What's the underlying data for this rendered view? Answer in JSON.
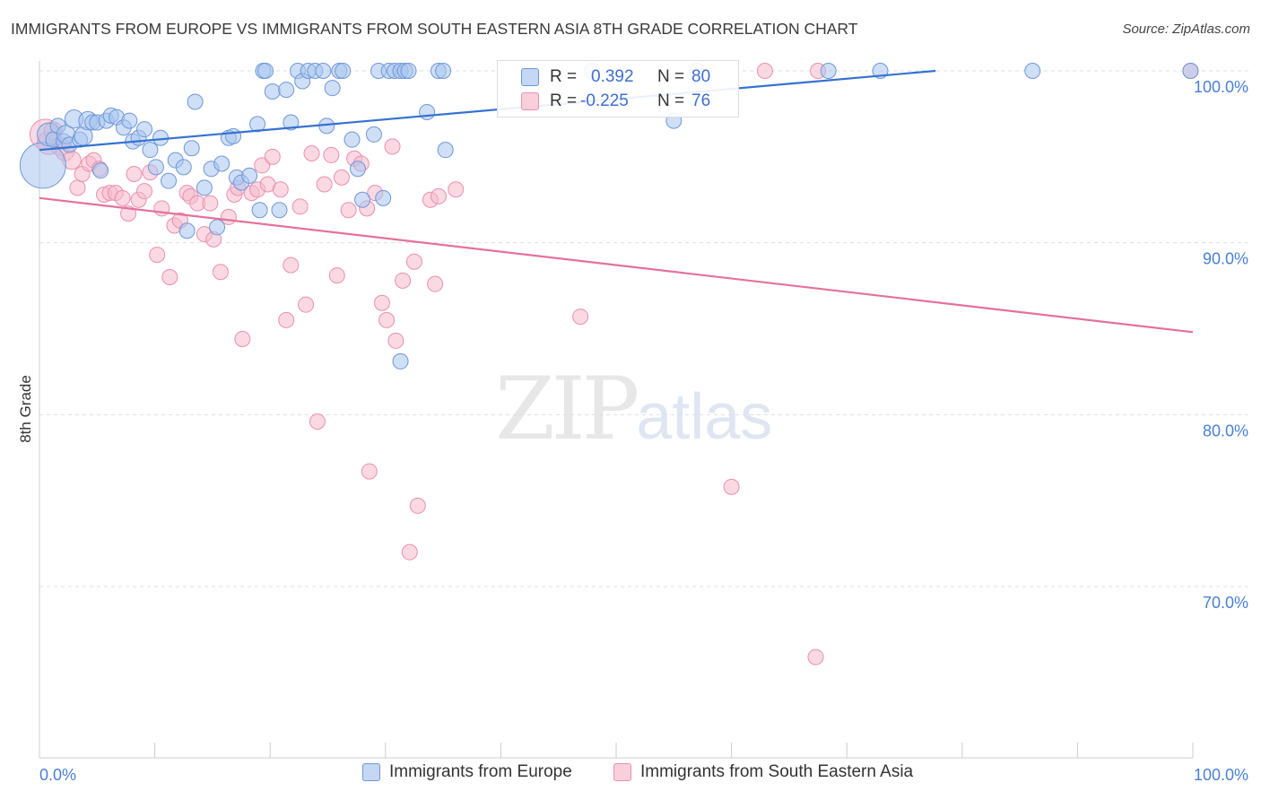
{
  "title": "IMMIGRANTS FROM EUROPE VS IMMIGRANTS FROM SOUTH EASTERN ASIA 8TH GRADE CORRELATION CHART",
  "source": "Source: ZipAtlas.com",
  "watermark": {
    "zip": "ZIP",
    "atlas": "atlas"
  },
  "stats": {
    "r_label": "R =",
    "n_label": "N =",
    "europe": {
      "r": "0.392",
      "n": "80"
    },
    "seasia": {
      "r": "-0.225",
      "n": "76"
    }
  },
  "legend": {
    "europe": "Immigrants from Europe",
    "seasia": "Immigrants from South Eastern Asia"
  },
  "colors": {
    "europe_fill": "#a8c4ee",
    "europe_stroke": "#6f97d8",
    "europe_line": "#3572d0",
    "seasia_fill": "#f6b9cc",
    "seasia_stroke": "#ec8fae",
    "seasia_line": "#e4719c",
    "tick_label": "#4a7fd4",
    "grid": "#dddddd"
  },
  "chart_data": {
    "type": "scatter",
    "title": "IMMIGRANTS FROM EUROPE VS IMMIGRANTS FROM SOUTH EASTERN ASIA 8TH GRADE CORRELATION CHART",
    "xlabel": "",
    "ylabel": "8th Grade",
    "xlim": [
      0,
      100
    ],
    "ylim": [
      60,
      103
    ],
    "x_tick_labels": [
      "0.0%",
      "100.0%"
    ],
    "y_ticks": [
      70,
      80,
      90,
      100
    ],
    "y_tick_labels": [
      "70.0%",
      "80.0%",
      "90.0%",
      "100.0%"
    ],
    "grid": true,
    "legend_position": "bottom",
    "series": [
      {
        "name": "Immigrants from Europe",
        "trend": {
          "x": [
            0,
            77.7
          ],
          "y": [
            95.4,
            100.0
          ]
        },
        "points": [
          [
            0.3,
            94.5,
            3
          ],
          [
            0.8,
            96.3,
            1.5
          ],
          [
            1.2,
            96.0,
            1
          ],
          [
            1.6,
            96.8,
            1
          ],
          [
            2.1,
            95.9,
            1
          ],
          [
            2.3,
            96.3,
            1.2
          ],
          [
            2.6,
            95.7,
            1
          ],
          [
            3.0,
            97.2,
            1.2
          ],
          [
            3.5,
            96.0,
            1
          ],
          [
            3.8,
            96.2,
            1.2
          ],
          [
            4.2,
            97.1,
            1.2
          ],
          [
            4.6,
            97.0,
            1
          ],
          [
            5.0,
            97.0,
            1
          ],
          [
            5.3,
            94.2,
            1
          ],
          [
            5.8,
            97.1,
            1
          ],
          [
            6.2,
            97.4,
            1
          ],
          [
            6.7,
            97.3,
            1
          ],
          [
            7.3,
            96.7,
            1
          ],
          [
            7.8,
            97.1,
            1
          ],
          [
            8.1,
            95.9,
            1
          ],
          [
            8.6,
            96.1,
            1
          ],
          [
            9.1,
            96.6,
            1
          ],
          [
            9.6,
            95.4,
            1
          ],
          [
            10.1,
            94.4,
            1
          ],
          [
            10.5,
            96.1,
            1
          ],
          [
            11.2,
            93.6,
            1
          ],
          [
            11.8,
            94.8,
            1
          ],
          [
            12.5,
            94.4,
            1
          ],
          [
            12.8,
            90.7,
            1
          ],
          [
            13.2,
            95.5,
            1
          ],
          [
            13.5,
            98.2,
            1
          ],
          [
            14.3,
            93.2,
            1
          ],
          [
            14.9,
            94.3,
            1
          ],
          [
            15.4,
            90.9,
            1
          ],
          [
            15.8,
            94.6,
            1
          ],
          [
            16.4,
            96.1,
            1
          ],
          [
            16.8,
            96.2,
            1
          ],
          [
            17.1,
            93.8,
            1
          ],
          [
            17.5,
            93.5,
            1
          ],
          [
            18.2,
            93.9,
            1
          ],
          [
            18.9,
            96.9,
            1
          ],
          [
            19.1,
            91.9,
            1
          ],
          [
            19.4,
            100.0,
            1
          ],
          [
            19.6,
            100.0,
            1
          ],
          [
            20.2,
            98.8,
            1
          ],
          [
            20.8,
            91.9,
            1
          ],
          [
            21.4,
            98.9,
            1
          ],
          [
            21.8,
            97.0,
            1
          ],
          [
            22.4,
            100.0,
            1
          ],
          [
            22.8,
            99.4,
            1
          ],
          [
            23.3,
            100.0,
            1
          ],
          [
            23.9,
            100.0,
            1
          ],
          [
            24.6,
            100.0,
            1
          ],
          [
            24.9,
            96.8,
            1
          ],
          [
            25.4,
            99.0,
            1
          ],
          [
            26.0,
            100.0,
            1
          ],
          [
            26.3,
            100.0,
            1
          ],
          [
            27.1,
            96.0,
            1
          ],
          [
            27.6,
            94.3,
            1
          ],
          [
            28.0,
            92.5,
            1
          ],
          [
            29.0,
            96.3,
            1
          ],
          [
            29.4,
            100.0,
            1
          ],
          [
            29.8,
            92.6,
            1
          ],
          [
            30.3,
            100.0,
            1
          ],
          [
            30.8,
            100.0,
            1
          ],
          [
            31.3,
            100.0,
            1
          ],
          [
            31.7,
            100.0,
            1
          ],
          [
            32.0,
            100.0,
            1
          ],
          [
            31.3,
            83.1,
            1
          ],
          [
            33.6,
            97.6,
            1
          ],
          [
            34.6,
            100.0,
            1
          ],
          [
            35.0,
            100.0,
            1
          ],
          [
            35.2,
            95.4,
            1
          ],
          [
            47.9,
            100.0,
            1
          ],
          [
            55.0,
            97.1,
            1
          ],
          [
            57.0,
            100.0,
            1
          ],
          [
            68.4,
            100.0,
            1
          ],
          [
            72.9,
            100.0,
            1
          ],
          [
            86.1,
            100.0,
            1
          ],
          [
            99.8,
            100.0,
            1
          ]
        ]
      },
      {
        "name": "Immigrants from South Eastern Asia",
        "trend": {
          "x": [
            0,
            100
          ],
          "y": [
            92.6,
            84.8
          ]
        },
        "points": [
          [
            0.5,
            96.3,
            2
          ],
          [
            0.8,
            95.8,
            1.5
          ],
          [
            1.2,
            96.5,
            1.2
          ],
          [
            1.8,
            95.6,
            1.2
          ],
          [
            2.2,
            95.3,
            1.2
          ],
          [
            2.8,
            94.8,
            1.2
          ],
          [
            3.3,
            93.2,
            1
          ],
          [
            3.7,
            94.0,
            1
          ],
          [
            4.3,
            94.6,
            1
          ],
          [
            4.7,
            94.8,
            1
          ],
          [
            5.2,
            94.3,
            1
          ],
          [
            5.6,
            92.8,
            1
          ],
          [
            6.1,
            92.9,
            1
          ],
          [
            6.6,
            92.9,
            1
          ],
          [
            7.2,
            92.6,
            1
          ],
          [
            7.7,
            91.7,
            1
          ],
          [
            8.2,
            94.0,
            1
          ],
          [
            8.6,
            92.5,
            1
          ],
          [
            9.1,
            93.0,
            1
          ],
          [
            9.6,
            94.1,
            1
          ],
          [
            10.2,
            89.3,
            1
          ],
          [
            10.6,
            92.0,
            1
          ],
          [
            11.3,
            88.0,
            1
          ],
          [
            11.7,
            91.0,
            1
          ],
          [
            12.2,
            91.3,
            1
          ],
          [
            12.8,
            92.9,
            1
          ],
          [
            13.1,
            92.7,
            1
          ],
          [
            13.7,
            92.3,
            1
          ],
          [
            14.3,
            90.5,
            1
          ],
          [
            14.8,
            92.3,
            1
          ],
          [
            15.1,
            90.2,
            1
          ],
          [
            15.7,
            88.3,
            1
          ],
          [
            16.4,
            91.5,
            1
          ],
          [
            16.9,
            92.8,
            1
          ],
          [
            17.2,
            93.2,
            1
          ],
          [
            17.6,
            84.4,
            1
          ],
          [
            18.4,
            92.9,
            1
          ],
          [
            18.9,
            93.1,
            1
          ],
          [
            19.3,
            94.5,
            1
          ],
          [
            19.8,
            93.4,
            1
          ],
          [
            20.2,
            95.0,
            1
          ],
          [
            20.9,
            93.1,
            1
          ],
          [
            21.4,
            85.5,
            1
          ],
          [
            21.8,
            88.7,
            1
          ],
          [
            22.6,
            92.1,
            1
          ],
          [
            23.1,
            86.4,
            1
          ],
          [
            23.6,
            95.2,
            1
          ],
          [
            24.1,
            79.6,
            1
          ],
          [
            24.7,
            93.4,
            1
          ],
          [
            25.3,
            95.1,
            1
          ],
          [
            25.8,
            88.1,
            1
          ],
          [
            26.2,
            93.8,
            1
          ],
          [
            26.8,
            91.9,
            1
          ],
          [
            27.3,
            94.9,
            1
          ],
          [
            27.9,
            94.6,
            1
          ],
          [
            28.4,
            92.0,
            1
          ],
          [
            28.6,
            76.7,
            1
          ],
          [
            29.1,
            92.9,
            1
          ],
          [
            29.7,
            86.5,
            1
          ],
          [
            30.1,
            85.5,
            1
          ],
          [
            30.6,
            95.6,
            1
          ],
          [
            30.9,
            84.3,
            1
          ],
          [
            31.5,
            87.8,
            1
          ],
          [
            32.1,
            72.0,
            1
          ],
          [
            32.5,
            88.9,
            1
          ],
          [
            32.8,
            74.7,
            1
          ],
          [
            33.9,
            92.5,
            1
          ],
          [
            34.3,
            87.6,
            1
          ],
          [
            34.6,
            92.7,
            1
          ],
          [
            36.1,
            93.1,
            1
          ],
          [
            46.9,
            85.7,
            1
          ],
          [
            60.0,
            75.8,
            1
          ],
          [
            62.9,
            100.0,
            1
          ],
          [
            67.3,
            65.9,
            1
          ],
          [
            67.5,
            100.0,
            1
          ],
          [
            99.8,
            100.0,
            1
          ]
        ]
      }
    ]
  }
}
